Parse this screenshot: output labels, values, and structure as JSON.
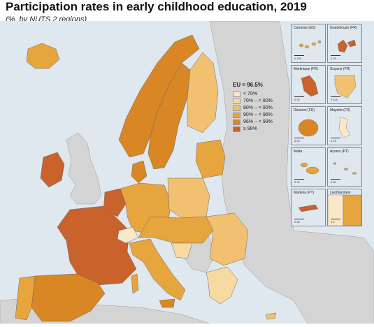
{
  "title": "Participation rates in early childhood education, 2019",
  "subtitle": "(%, by NUTS 2 regions)",
  "legend": {
    "title": "EU = 96.5%",
    "items": [
      {
        "label": "< 70%",
        "color": "#fbe8c8"
      },
      {
        "label": "70% – < 80%",
        "color": "#f7d9a3"
      },
      {
        "label": "80% – < 90%",
        "color": "#f2c071"
      },
      {
        "label": "90% – < 96%",
        "color": "#e7a53d"
      },
      {
        "label": "96% – < 99%",
        "color": "#d98625"
      },
      {
        "label": "≥ 99%",
        "color": "#c9622b"
      }
    ]
  },
  "insets": [
    {
      "label": "Canarias (ES)",
      "scale": "0   100"
    },
    {
      "label": "Guadeloupe (FR)",
      "scale": "0   25"
    },
    {
      "label": "Martinique (FR)",
      "scale": "0   20"
    },
    {
      "label": "Guyane (FR)",
      "scale": "0   100"
    },
    {
      "label": "Réunion (FR)",
      "scale": "0   20"
    },
    {
      "label": "Mayotte (FR)",
      "scale": "0   15"
    },
    {
      "label": "Malta",
      "scale": "0   10"
    },
    {
      "label": "Açores (PT)",
      "scale": "0   50"
    },
    {
      "label": "Madeira (PT)",
      "scale": "0   20"
    },
    {
      "label": "Liechtenstein",
      "scale": "0   5"
    }
  ],
  "colors": {
    "sea": "#dfe8ef",
    "non_eu_land": "#d4d4d4",
    "border": "#6a6a6a"
  }
}
